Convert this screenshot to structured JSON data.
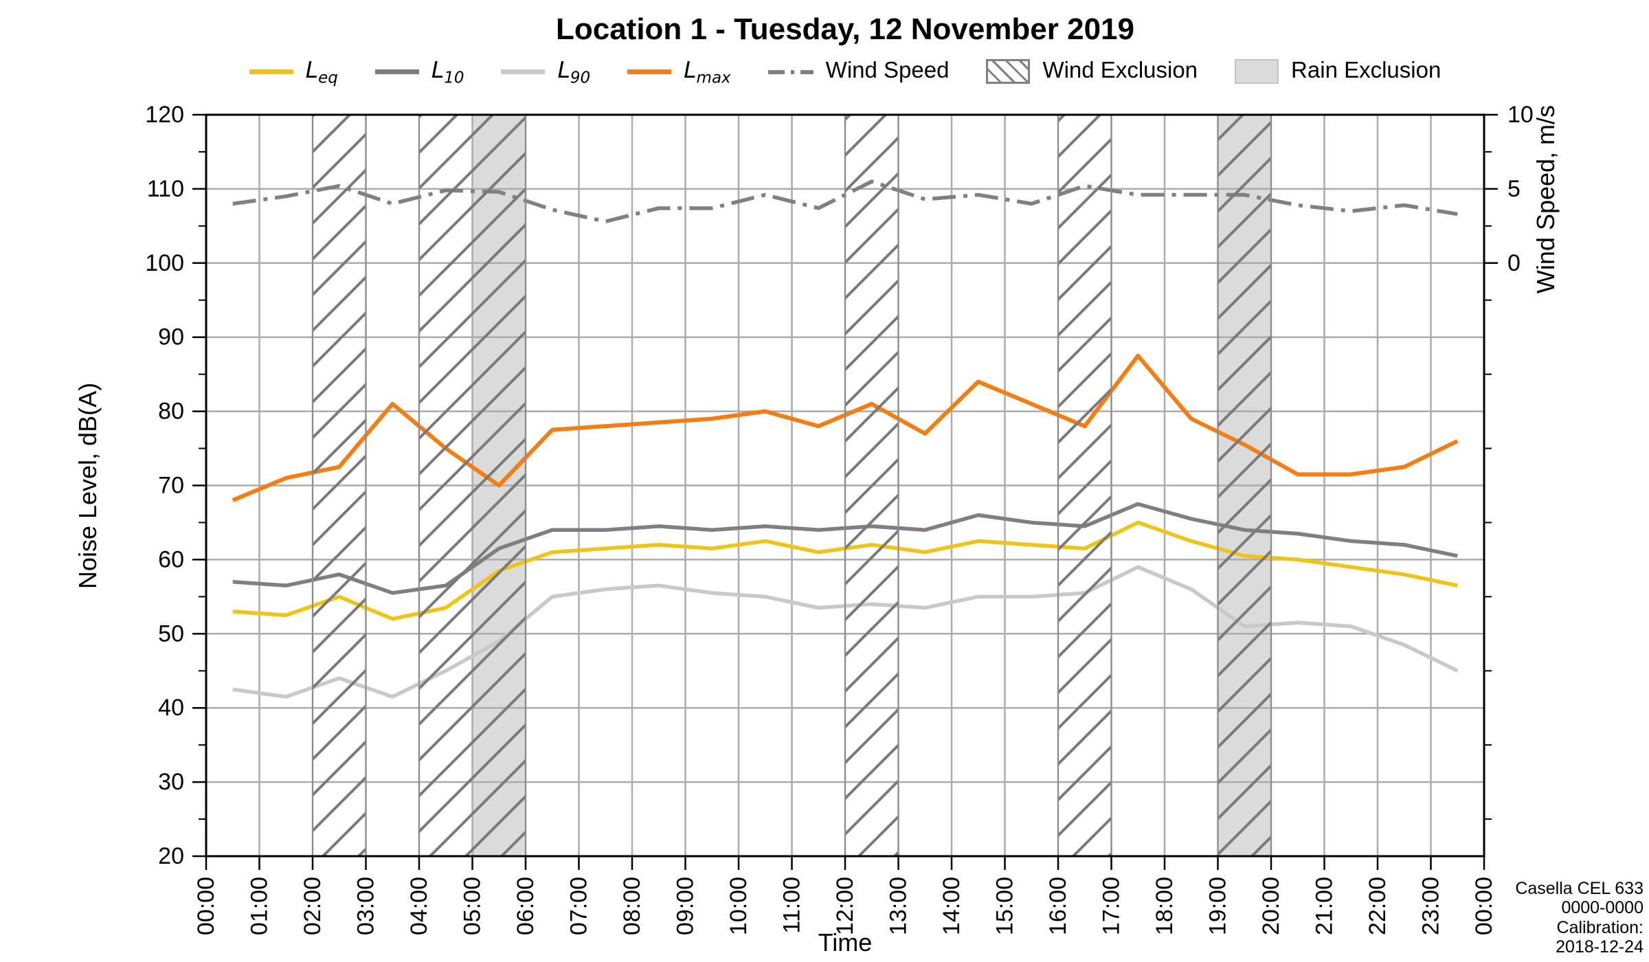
{
  "title": "Location 1 - Tuesday, 12 November 2019",
  "legend": {
    "items": [
      {
        "main": "L",
        "sub": "eq",
        "swatch": "line",
        "color": "#f0c413"
      },
      {
        "main": "L",
        "sub": "10",
        "swatch": "line",
        "color": "#7f7f7f"
      },
      {
        "main": "L",
        "sub": "90",
        "swatch": "line",
        "color": "#c9c9c9"
      },
      {
        "main": "L",
        "sub": "max",
        "swatch": "line",
        "color": "#f57e14"
      },
      {
        "main": "Wind Speed",
        "sub": "",
        "swatch": "dashdot",
        "color": "#808080"
      },
      {
        "main": "Wind Exclusion",
        "sub": "",
        "swatch": "hatch",
        "color": "#808080"
      },
      {
        "main": "Rain Exclusion",
        "sub": "",
        "swatch": "fill",
        "color": "#dbdbdb"
      }
    ]
  },
  "footer": {
    "lines": [
      "Casella CEL 633",
      "0000-0000",
      "Calibration:",
      "2018-12-24"
    ]
  },
  "chart_data": {
    "type": "line",
    "title": "Location 1 - Tuesday, 12 November 2019",
    "xlabel": "Time",
    "ylabel_left": "Noise Level, dB(A)",
    "ylabel_right": "Wind Speed, m/s",
    "ylim_left": [
      20,
      120
    ],
    "ylim_right_labelled": [
      0,
      10
    ],
    "grid": true,
    "legend_position": "top",
    "x_ticks": [
      "00:00",
      "01:00",
      "02:00",
      "03:00",
      "04:00",
      "05:00",
      "06:00",
      "07:00",
      "08:00",
      "09:00",
      "10:00",
      "11:00",
      "12:00",
      "13:00",
      "14:00",
      "15:00",
      "16:00",
      "17:00",
      "18:00",
      "19:00",
      "20:00",
      "21:00",
      "22:00",
      "23:00",
      "00:00"
    ],
    "yticks_left": [
      120,
      110,
      100,
      90,
      80,
      70,
      60,
      50,
      40,
      30,
      20
    ],
    "yticks_right": [
      10,
      5,
      0
    ],
    "times": [
      "00:30",
      "01:30",
      "02:30",
      "03:30",
      "04:30",
      "05:30",
      "06:30",
      "07:30",
      "08:30",
      "09:30",
      "10:30",
      "11:30",
      "12:30",
      "13:30",
      "14:30",
      "15:30",
      "16:30",
      "17:30",
      "18:30",
      "19:30",
      "20:30",
      "21:30",
      "22:30",
      "23:30"
    ],
    "hours": [
      0.5,
      1.5,
      2.5,
      3.5,
      4.5,
      5.5,
      6.5,
      7.5,
      8.5,
      9.5,
      10.5,
      11.5,
      12.5,
      13.5,
      14.5,
      15.5,
      16.5,
      17.5,
      18.5,
      19.5,
      20.5,
      21.5,
      22.5,
      23.5
    ],
    "series": [
      {
        "name": "L90",
        "unit": "dB(A)",
        "color": "#c9c9c9",
        "width": 5.5,
        "values": [
          42.5,
          41.5,
          44,
          41.5,
          45,
          49,
          55,
          56,
          56.5,
          55.5,
          55,
          53.5,
          54,
          53.5,
          55,
          55,
          55.5,
          59,
          56,
          51,
          51.5,
          51,
          48.5,
          45
        ]
      },
      {
        "name": "L10",
        "unit": "dB(A)",
        "color": "#7f7f7f",
        "width": 5.5,
        "values": [
          57,
          56.5,
          58,
          55.5,
          56.5,
          61.5,
          64,
          64,
          64.5,
          64,
          64.5,
          64,
          64.5,
          64,
          66,
          65,
          64.5,
          67.5,
          65.5,
          64,
          63.5,
          62.5,
          62,
          60.5
        ]
      },
      {
        "name": "Leq",
        "unit": "dB(A)",
        "color": "#f0c413",
        "width": 5.5,
        "values": [
          53,
          52.5,
          55,
          52,
          53.5,
          58.5,
          61,
          61.5,
          62,
          61.5,
          62.5,
          61,
          62,
          61,
          62.5,
          62,
          61.5,
          65,
          62.5,
          60.5,
          60,
          59,
          58,
          56.5
        ]
      },
      {
        "name": "Lmax",
        "unit": "dB(A)",
        "color": "#f57e14",
        "width": 6,
        "values": [
          68,
          71,
          72.5,
          81,
          75,
          70,
          77.5,
          78,
          78.5,
          79,
          80,
          78,
          81,
          77,
          84,
          81,
          78,
          87.5,
          79,
          75.5,
          71.5,
          71.5,
          72.5,
          76
        ]
      },
      {
        "name": "Wind Speed",
        "unit": "m/s",
        "color": "#808080",
        "width": 5.5,
        "axis": "right",
        "dash": "34 11 6 11",
        "values": [
          4.0,
          4.5,
          5.2,
          4.0,
          4.9,
          4.8,
          3.6,
          2.8,
          3.7,
          3.7,
          4.6,
          3.7,
          5.5,
          4.3,
          4.6,
          4.0,
          5.2,
          4.6,
          4.6,
          4.6,
          3.9,
          3.5,
          3.9,
          3.3
        ]
      }
    ],
    "wind_exclusion_zones": [
      [
        2,
        3
      ],
      [
        4,
        6
      ],
      [
        12,
        13
      ],
      [
        16,
        17
      ],
      [
        19,
        20
      ]
    ],
    "rain_exclusion_zones": [
      [
        5,
        6
      ],
      [
        19,
        20
      ]
    ],
    "colors": {
      "grid": "#ababab",
      "axis": "#000000",
      "rain_fill": "#dbdbdb",
      "hatch": "#7a7a7a",
      "zone_edge": "#8c8c8c"
    }
  }
}
